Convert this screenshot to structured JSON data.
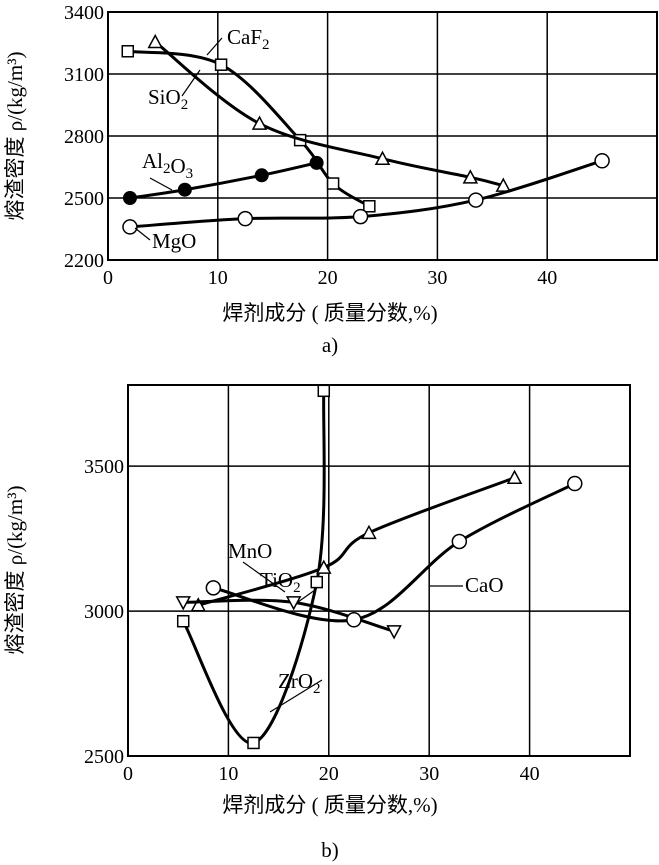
{
  "chart_data": [
    {
      "type": "line",
      "subtitle": "a)",
      "xlabel": "焊剂成分 ( 质量分数,%)",
      "ylabel": "熔渣密度 ρ/(kg/m³)",
      "xlim": [
        0,
        50
      ],
      "ylim": [
        2200,
        3400
      ],
      "xticks": [
        "0",
        "10",
        "20",
        "30",
        "40"
      ],
      "yticks": [
        "2200",
        "2500",
        "2800",
        "3100",
        "3400"
      ],
      "grid": true,
      "series": [
        {
          "name": "CaF₂",
          "marker": "square",
          "x": [
            1.8,
            10.3,
            17.5,
            20.5,
            23.8
          ],
          "y": [
            3210,
            3145,
            2780,
            2570,
            2460
          ]
        },
        {
          "name": "SiO₂",
          "marker": "triangle",
          "x": [
            4.3,
            13.8,
            25,
            33,
            36
          ],
          "y": [
            3255,
            2860,
            2690,
            2600,
            2560
          ]
        },
        {
          "name": "Al₂O₃",
          "marker": "filled-circle",
          "x": [
            2,
            7,
            14,
            19
          ],
          "y": [
            2500,
            2540,
            2610,
            2670
          ]
        },
        {
          "name": "MgO",
          "marker": "circle",
          "x": [
            2,
            12.5,
            23,
            33.5,
            45
          ],
          "y": [
            2360,
            2400,
            2410,
            2490,
            2680
          ]
        }
      ]
    },
    {
      "type": "line",
      "subtitle": "b)",
      "xlabel": "焊剂成分 ( 质量分数,%)",
      "ylabel": "熔渣密度 ρ/(kg/m³)",
      "xlim": [
        0,
        50
      ],
      "ylim": [
        2500,
        3780
      ],
      "xticks": [
        "0",
        "10",
        "20",
        "30",
        "40"
      ],
      "yticks": [
        "2500",
        "3000",
        "3500"
      ],
      "grid": true,
      "series": [
        {
          "name": "ZrO₂",
          "marker": "square",
          "x": [
            5.5,
            12.5,
            18.8,
            19.5
          ],
          "y": [
            2965,
            2545,
            3100,
            3760
          ]
        },
        {
          "name": "MnO",
          "marker": "triangle",
          "x": [
            7,
            19.5,
            24,
            38.5
          ],
          "y": [
            3020,
            3150,
            3270,
            3460
          ]
        },
        {
          "name": "TiO₂",
          "marker": "inverted-triangle",
          "x": [
            5.5,
            16.5,
            26.5
          ],
          "y": [
            3030,
            3030,
            2930
          ]
        },
        {
          "name": "CaO",
          "marker": "circle",
          "x": [
            8.5,
            22.5,
            33,
            44.5
          ],
          "y": [
            3080,
            2970,
            3240,
            3440
          ]
        }
      ]
    }
  ]
}
